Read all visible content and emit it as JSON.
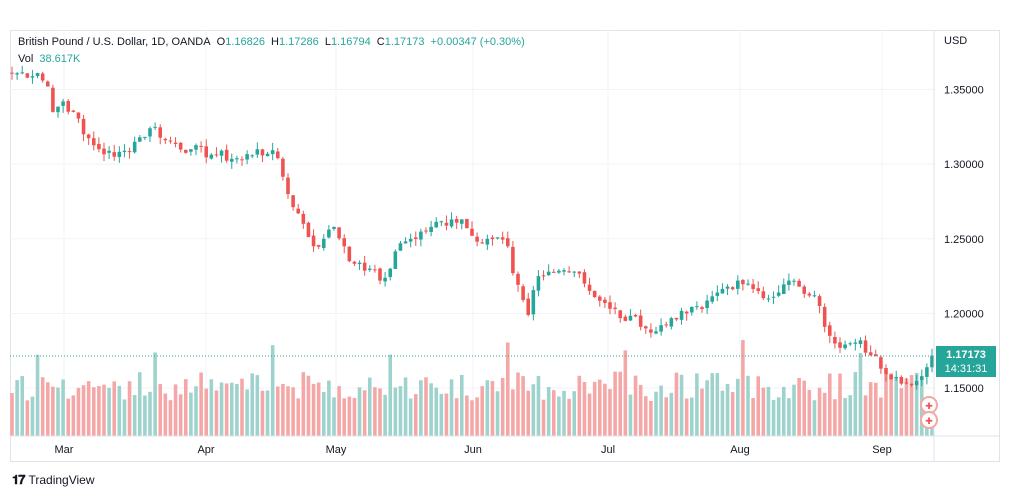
{
  "legend": {
    "symbol": "British Pound / U.S. Dollar, 1D, OANDA",
    "open_label": "O",
    "open": "1.16826",
    "high_label": "H",
    "high": "1.17286",
    "low_label": "L",
    "low": "1.16794",
    "close_label": "C",
    "close": "1.17173",
    "change": "+0.00347 (+0.30%)",
    "vol_label": "Vol",
    "vol": "38.617K"
  },
  "price_tag": {
    "price": "1.17173",
    "countdown": "14:31:31"
  },
  "footer": {
    "brand": "TradingView"
  },
  "colors": {
    "up": "#26a69a",
    "down": "#ef5350",
    "up_volume": "#9ed3cd",
    "down_volume": "#f4a7a6",
    "grid": "#f0f3fa",
    "last_line": "#26a69a"
  },
  "chart_data": {
    "type": "candlestick",
    "currency": "USD",
    "yticks": [
      "1.35000",
      "1.30000",
      "1.25000",
      "1.20000",
      "1.15000"
    ],
    "xticks": [
      "Mar",
      "Apr",
      "May",
      "Jun",
      "Jul",
      "Aug",
      "Sep"
    ],
    "ylim": [
      1.115,
      1.365
    ],
    "last_price": 1.17173,
    "series": [
      {
        "name": "price",
        "close_anchors": [
          [
            0,
            1.361
          ],
          [
            5,
            1.361
          ],
          [
            7,
            1.352
          ],
          [
            8,
            1.335
          ],
          [
            10,
            1.342
          ],
          [
            12,
            1.335
          ],
          [
            14,
            1.32
          ],
          [
            17,
            1.31
          ],
          [
            20,
            1.305
          ],
          [
            22,
            1.309
          ],
          [
            25,
            1.318
          ],
          [
            28,
            1.325
          ],
          [
            30,
            1.316
          ],
          [
            35,
            1.31
          ],
          [
            40,
            1.306
          ],
          [
            45,
            1.303
          ],
          [
            48,
            1.31
          ],
          [
            50,
            1.307
          ],
          [
            52,
            1.304
          ],
          [
            54,
            1.28
          ],
          [
            57,
            1.26
          ],
          [
            59,
            1.245
          ],
          [
            61,
            1.25
          ],
          [
            63,
            1.258
          ],
          [
            65,
            1.245
          ],
          [
            66,
            1.235
          ],
          [
            68,
            1.234
          ],
          [
            70,
            1.23
          ],
          [
            72,
            1.222
          ],
          [
            74,
            1.23
          ],
          [
            76,
            1.247
          ],
          [
            78,
            1.25
          ],
          [
            82,
            1.258
          ],
          [
            86,
            1.263
          ],
          [
            88,
            1.263
          ],
          [
            90,
            1.252
          ],
          [
            93,
            1.25
          ],
          [
            95,
            1.251
          ],
          [
            97,
            1.245
          ],
          [
            98,
            1.227
          ],
          [
            100,
            1.209
          ],
          [
            101,
            1.199
          ],
          [
            103,
            1.225
          ],
          [
            105,
            1.228
          ],
          [
            108,
            1.229
          ],
          [
            110,
            1.228
          ],
          [
            112,
            1.22
          ],
          [
            114,
            1.211
          ],
          [
            116,
            1.207
          ],
          [
            118,
            1.203
          ],
          [
            120,
            1.195
          ],
          [
            122,
            1.198
          ],
          [
            124,
            1.19
          ],
          [
            126,
            1.188
          ],
          [
            128,
            1.192
          ],
          [
            130,
            1.196
          ],
          [
            132,
            1.2
          ],
          [
            135,
            1.203
          ],
          [
            138,
            1.214
          ],
          [
            140,
            1.218
          ],
          [
            142,
            1.222
          ],
          [
            144,
            1.22
          ],
          [
            146,
            1.215
          ],
          [
            148,
            1.21
          ],
          [
            150,
            1.214
          ],
          [
            152,
            1.222
          ],
          [
            154,
            1.218
          ],
          [
            156,
            1.212
          ],
          [
            158,
            1.205
          ],
          [
            160,
            1.185
          ],
          [
            162,
            1.177
          ],
          [
            164,
            1.18
          ],
          [
            166,
            1.182
          ],
          [
            168,
            1.172
          ],
          [
            170,
            1.163
          ],
          [
            172,
            1.156
          ],
          [
            174,
            1.153
          ],
          [
            176,
            1.152
          ],
          [
            178,
            1.158
          ],
          [
            179,
            1.164
          ],
          [
            180,
            1.172
          ]
        ]
      },
      {
        "name": "volume",
        "note": "relative daily volume"
      }
    ]
  }
}
